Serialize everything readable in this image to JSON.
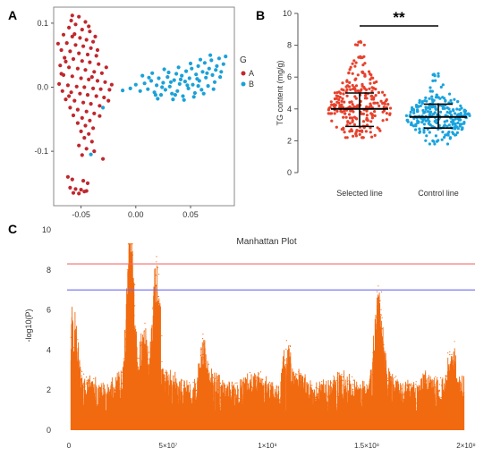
{
  "panels": {
    "a": "A",
    "b": "B",
    "c": "C"
  },
  "colors": {
    "group_a": "#c0272d",
    "group_b": "#1ba1d8",
    "beeswarm_selected": "#e8412c",
    "beeswarm_control": "#1aa3de",
    "manhattan": "#f26a0f",
    "line_red": "#f26b6b",
    "line_blue": "#6b6bf2"
  },
  "chart_data": [
    {
      "id": "A",
      "type": "scatter",
      "title": "",
      "xlabel": "",
      "ylabel": "",
      "xlim": [
        -0.075,
        0.09
      ],
      "ylim": [
        -0.185,
        0.125
      ],
      "x_ticks": [
        -0.05,
        0.0,
        0.05
      ],
      "x_tick_labels": [
        "-0.05",
        "0.00",
        "0.05"
      ],
      "y_ticks": [
        0.1,
        0.0,
        -0.1
      ],
      "y_tick_labels": [
        "0.1",
        "0.0",
        "-0.1"
      ],
      "legend_title": "G",
      "legend_position": "right",
      "series": [
        {
          "name": "A",
          "color": "#c0272d",
          "points": [
            [
              -0.058,
              0.112
            ],
            [
              -0.052,
              0.11
            ],
            [
              -0.046,
              0.102
            ],
            [
              -0.055,
              0.098
            ],
            [
              -0.061,
              0.093
            ],
            [
              -0.049,
              0.09
            ],
            [
              -0.042,
              0.087
            ],
            [
              -0.066,
              0.082
            ],
            [
              -0.058,
              0.079
            ],
            [
              -0.051,
              0.077
            ],
            [
              -0.045,
              0.074
            ],
            [
              -0.039,
              0.071
            ],
            [
              -0.063,
              0.069
            ],
            [
              -0.055,
              0.066
            ],
            [
              -0.048,
              0.064
            ],
            [
              -0.041,
              0.061
            ],
            [
              -0.068,
              0.058
            ],
            [
              -0.06,
              0.056
            ],
            [
              -0.052,
              0.053
            ],
            [
              -0.044,
              0.051
            ],
            [
              -0.036,
              0.049
            ],
            [
              -0.065,
              0.046
            ],
            [
              -0.057,
              0.044
            ],
            [
              -0.049,
              0.041
            ],
            [
              -0.042,
              0.039
            ],
            [
              -0.034,
              0.036
            ],
            [
              -0.069,
              0.034
            ],
            [
              -0.061,
              0.031
            ],
            [
              -0.053,
              0.029
            ],
            [
              -0.046,
              0.027
            ],
            [
              -0.038,
              0.024
            ],
            [
              -0.031,
              0.022
            ],
            [
              -0.066,
              0.019
            ],
            [
              -0.058,
              0.017
            ],
            [
              -0.05,
              0.014
            ],
            [
              -0.043,
              0.012
            ],
            [
              -0.035,
              0.01
            ],
            [
              -0.028,
              0.008
            ],
            [
              -0.07,
              0.005
            ],
            [
              -0.062,
              0.003
            ],
            [
              -0.054,
              0.001
            ],
            [
              -0.047,
              0.0
            ],
            [
              -0.039,
              -0.002
            ],
            [
              -0.032,
              -0.003
            ],
            [
              -0.024,
              -0.004
            ],
            [
              -0.067,
              -0.006
            ],
            [
              -0.059,
              -0.008
            ],
            [
              -0.051,
              -0.01
            ],
            [
              -0.044,
              -0.012
            ],
            [
              -0.036,
              -0.014
            ],
            [
              -0.029,
              -0.016
            ],
            [
              -0.064,
              -0.019
            ],
            [
              -0.056,
              -0.021
            ],
            [
              -0.048,
              -0.024
            ],
            [
              -0.041,
              -0.026
            ],
            [
              -0.033,
              -0.029
            ],
            [
              -0.06,
              -0.032
            ],
            [
              -0.053,
              -0.035
            ],
            [
              -0.045,
              -0.038
            ],
            [
              -0.038,
              -0.041
            ],
            [
              -0.057,
              -0.044
            ],
            [
              -0.049,
              -0.048
            ],
            [
              -0.042,
              -0.052
            ],
            [
              -0.053,
              -0.056
            ],
            [
              -0.046,
              -0.06
            ],
            [
              -0.039,
              -0.064
            ],
            [
              -0.05,
              -0.069
            ],
            [
              -0.043,
              -0.073
            ],
            [
              -0.047,
              -0.079
            ],
            [
              -0.04,
              -0.085
            ],
            [
              -0.052,
              -0.091
            ],
            [
              -0.045,
              -0.096
            ],
            [
              -0.038,
              -0.1
            ],
            [
              -0.049,
              -0.106
            ],
            [
              -0.03,
              -0.112
            ],
            [
              -0.062,
              -0.14
            ],
            [
              -0.058,
              -0.144
            ],
            [
              -0.048,
              -0.146
            ],
            [
              -0.044,
              -0.15
            ],
            [
              -0.06,
              -0.157
            ],
            [
              -0.055,
              -0.159
            ],
            [
              -0.05,
              -0.16
            ],
            [
              -0.045,
              -0.162
            ],
            [
              -0.057,
              -0.165
            ],
            [
              -0.052,
              -0.166
            ],
            [
              -0.047,
              -0.163
            ],
            [
              -0.071,
              0.068
            ],
            [
              -0.059,
              0.104
            ],
            [
              -0.035,
              0.058
            ],
            [
              -0.027,
              0.031
            ],
            [
              -0.022,
              0.004
            ],
            [
              -0.025,
              -0.021
            ],
            [
              -0.064,
              0.04
            ],
            [
              -0.04,
              0.016
            ],
            [
              -0.033,
              -0.045
            ],
            [
              -0.056,
              0.083
            ],
            [
              -0.043,
              0.095
            ],
            [
              -0.068,
              0.021
            ],
            [
              -0.061,
              -0.014
            ],
            [
              -0.037,
              0.079
            ]
          ]
        },
        {
          "name": "B",
          "color": "#1ba1d8",
          "points": [
            [
              -0.005,
              -0.002
            ],
            [
              0.0,
              0.004
            ],
            [
              0.004,
              -0.006
            ],
            [
              0.008,
              0.006
            ],
            [
              0.011,
              -0.003
            ],
            [
              0.014,
              0.01
            ],
            [
              0.017,
              -0.008
            ],
            [
              0.019,
              0.003
            ],
            [
              0.021,
              0.014
            ],
            [
              0.023,
              -0.012
            ],
            [
              0.025,
              0.007
            ],
            [
              0.027,
              -0.004
            ],
            [
              0.029,
              0.016
            ],
            [
              0.031,
              0.001
            ],
            [
              0.033,
              -0.01
            ],
            [
              0.035,
              0.011
            ],
            [
              0.037,
              0.021
            ],
            [
              0.038,
              -0.006
            ],
            [
              0.04,
              0.005
            ],
            [
              0.042,
              0.018
            ],
            [
              0.043,
              -0.014
            ],
            [
              0.045,
              0.009
            ],
            [
              0.046,
              0.025
            ],
            [
              0.048,
              -0.002
            ],
            [
              0.049,
              0.014
            ],
            [
              0.051,
              0.029
            ],
            [
              0.052,
              0.004
            ],
            [
              0.054,
              -0.009
            ],
            [
              0.055,
              0.02
            ],
            [
              0.057,
              0.033
            ],
            [
              0.058,
              0.01
            ],
            [
              0.06,
              -0.004
            ],
            [
              0.061,
              0.024
            ],
            [
              0.063,
              0.038
            ],
            [
              0.064,
              0.015
            ],
            [
              0.066,
              0.002
            ],
            [
              0.067,
              0.029
            ],
            [
              0.069,
              0.042
            ],
            [
              0.07,
              0.019
            ],
            [
              0.072,
              0.008
            ],
            [
              0.074,
              0.033
            ],
            [
              0.076,
              0.045
            ],
            [
              0.078,
              0.024
            ],
            [
              0.08,
              0.036
            ],
            [
              0.082,
              0.048
            ],
            [
              0.015,
              0.022
            ],
            [
              0.026,
              0.028
            ],
            [
              0.034,
              -0.019
            ],
            [
              0.044,
              -0.02
            ],
            [
              0.053,
              -0.015
            ],
            [
              0.062,
              -0.01
            ],
            [
              0.071,
              -0.003
            ],
            [
              0.02,
              -0.018
            ],
            [
              0.039,
              0.031
            ],
            [
              0.05,
              0.037
            ],
            [
              0.059,
              0.043
            ],
            [
              0.068,
              0.05
            ],
            [
              0.024,
              0.0
            ],
            [
              0.032,
              0.008
            ],
            [
              0.041,
              0.012
            ],
            [
              0.047,
              0.003
            ],
            [
              0.056,
              0.013
            ],
            [
              0.065,
              0.022
            ],
            [
              0.073,
              0.027
            ],
            [
              0.03,
              0.023
            ],
            [
              0.012,
              0.015
            ],
            [
              0.018,
              -0.012
            ],
            [
              -0.012,
              -0.005
            ],
            [
              -0.03,
              -0.032
            ],
            [
              -0.041,
              -0.105
            ],
            [
              0.006,
              0.018
            ],
            [
              0.036,
              -0.012
            ],
            [
              0.057,
              0.002
            ],
            [
              0.077,
              0.016
            ]
          ]
        }
      ]
    },
    {
      "id": "B",
      "type": "scatter",
      "title": "",
      "xlabel": "",
      "ylabel": "TG content (mg/g)",
      "ylim": [
        0,
        10
      ],
      "y_ticks": [
        0,
        2,
        4,
        6,
        8,
        10
      ],
      "y_tick_labels": [
        "0",
        "2",
        "4",
        "6",
        "8",
        "10"
      ],
      "categories": [
        "Selected line",
        "Control line"
      ],
      "significance": "**",
      "groups": [
        {
          "name": "Selected line",
          "color": "#e8412c",
          "mean": 4.0,
          "sd_low": 2.9,
          "sd_high": 5.0,
          "min": 2.2,
          "max": 8.3
        },
        {
          "name": "Control line",
          "color": "#1aa3de",
          "mean": 3.5,
          "sd_low": 2.8,
          "sd_high": 4.3,
          "min": 1.8,
          "max": 6.3
        }
      ]
    },
    {
      "id": "C",
      "type": "scatter",
      "title": "Manhattan Plot",
      "xlabel": "",
      "ylabel": "-log10(P)",
      "xlim": [
        0,
        200000000
      ],
      "ylim": [
        0,
        10
      ],
      "x_ticks": [
        0,
        50000000,
        100000000,
        150000000,
        200000000
      ],
      "x_tick_labels": [
        "0",
        "5×10⁷",
        "1×10⁸",
        "1.5×10⁸",
        "2×10⁸"
      ],
      "y_ticks": [
        0,
        2,
        4,
        6,
        8,
        10
      ],
      "y_tick_labels": [
        "0",
        "2",
        "4",
        "6",
        "8",
        "10"
      ],
      "thresholds": [
        {
          "value": 8.3,
          "color": "#f26b6b"
        },
        {
          "value": 7.0,
          "color": "#6b6bf2"
        }
      ],
      "peaks": [
        {
          "pos": 2000000,
          "height": 4.9
        },
        {
          "pos": 31000000,
          "height": 9.2
        },
        {
          "pos": 38000000,
          "height": 4.3
        },
        {
          "pos": 44000000,
          "height": 7.5
        },
        {
          "pos": 68000000,
          "height": 3.2
        },
        {
          "pos": 110000000,
          "height": 3.3
        },
        {
          "pos": 156000000,
          "height": 5.9
        },
        {
          "pos": 193000000,
          "height": 3.1
        }
      ]
    }
  ]
}
